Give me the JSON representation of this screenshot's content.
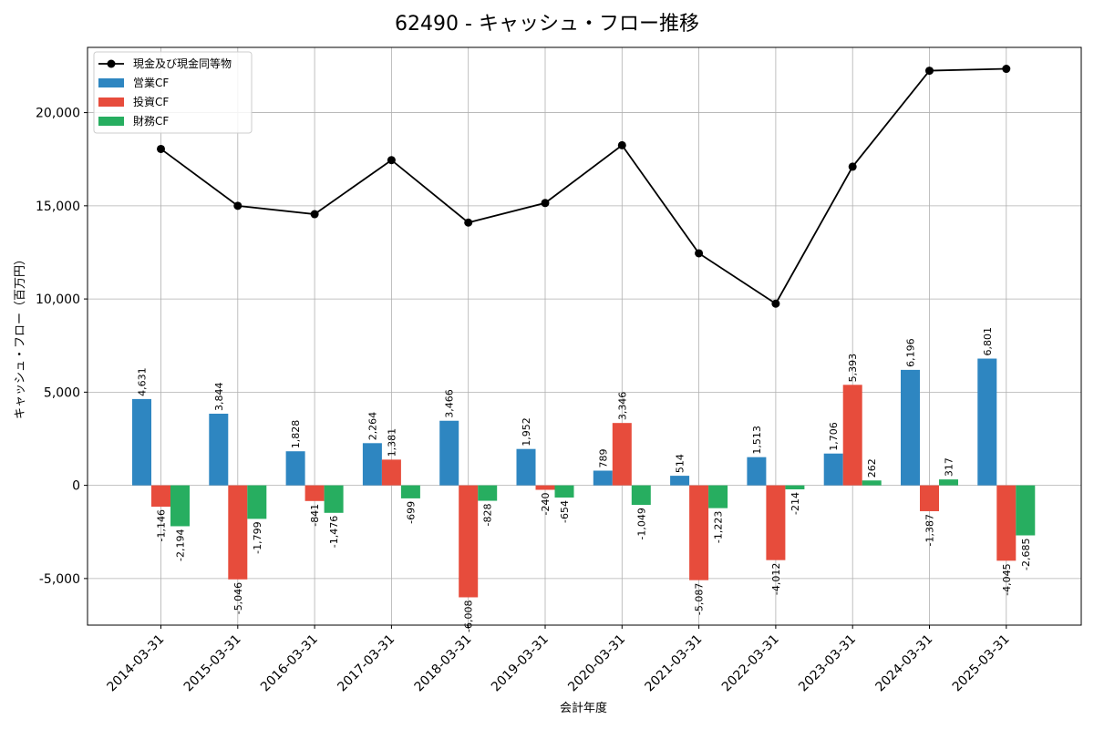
{
  "chart_data": {
    "type": "bar",
    "title": "62490 - キャッシュ・フロー推移",
    "xlabel": "会計年度",
    "ylabel": "キャッシュ・フロー（百万円）",
    "categories": [
      "2014-03-31",
      "2015-03-31",
      "2016-03-31",
      "2017-03-31",
      "2018-03-31",
      "2019-03-31",
      "2020-03-31",
      "2021-03-31",
      "2022-03-31",
      "2023-03-31",
      "2024-03-31",
      "2025-03-31"
    ],
    "ylim": [
      -7500,
      23500
    ],
    "yticks": [
      -5000,
      0,
      5000,
      10000,
      15000,
      20000
    ],
    "ytick_labels": [
      "-5,000",
      "0",
      "5,000",
      "10,000",
      "15,000",
      "20,000"
    ],
    "grid": true,
    "legend_position": "top-left",
    "series": [
      {
        "name": "営業CF",
        "kind": "bar",
        "color": "#2e86c1",
        "values": [
          4631,
          3844,
          1828,
          2264,
          3466,
          1952,
          789,
          514,
          1513,
          1706,
          6196,
          6801
        ],
        "labels": [
          "4,631",
          "3,844",
          "1,828",
          "2,264",
          "3,466",
          "1,952",
          "789",
          "514",
          "1,513",
          "1,706",
          "6,196",
          "6,801"
        ]
      },
      {
        "name": "投資CF",
        "kind": "bar",
        "color": "#e74c3c",
        "values": [
          -1146,
          -5046,
          -841,
          1381,
          -6008,
          -240,
          3346,
          -5087,
          -4012,
          5393,
          -1387,
          -4045
        ],
        "labels": [
          "-1,146",
          "-5,046",
          "-841",
          "1,381",
          "-6,008",
          "-240",
          "3,346",
          "-5,087",
          "-4,012",
          "5,393",
          "-1,387",
          "-4,045"
        ]
      },
      {
        "name": "財務CF",
        "kind": "bar",
        "color": "#27ae60",
        "values": [
          -2194,
          -1799,
          -1476,
          -699,
          -828,
          -654,
          -1049,
          -1223,
          -214,
          262,
          317,
          -2685
        ],
        "labels": [
          "-2,194",
          "-1,799",
          "-1,476",
          "-699",
          "-828",
          "-654",
          "-1,049",
          "-1,223",
          "-214",
          "262",
          "317",
          "-2,685"
        ]
      },
      {
        "name": "現金及び現金同等物",
        "kind": "line",
        "color": "#000000",
        "values": [
          18050,
          15000,
          14550,
          17450,
          14100,
          15150,
          18250,
          12450,
          9750,
          17100,
          22250,
          22350
        ]
      }
    ]
  }
}
